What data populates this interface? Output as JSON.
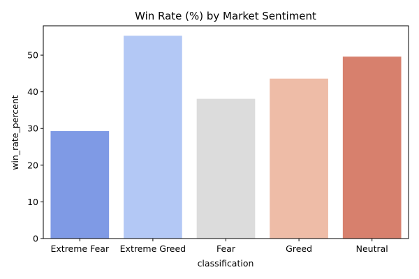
{
  "chart_data": {
    "type": "bar",
    "title": "Win Rate (%) by Market Sentiment",
    "xlabel": "classification",
    "ylabel": "win_rate_percent",
    "categories": [
      "Extreme Fear",
      "Extreme Greed",
      "Fear",
      "Greed",
      "Neutral"
    ],
    "values": [
      29.3,
      55.3,
      38.1,
      43.6,
      49.6
    ],
    "colors": [
      "#7f9ae5",
      "#b3c8f5",
      "#dcdcdc",
      "#eebca7",
      "#d7806d"
    ],
    "ylim": [
      0,
      58
    ],
    "yticks": [
      0,
      10,
      20,
      30,
      40,
      50
    ],
    "grid": false,
    "legend": "none"
  }
}
